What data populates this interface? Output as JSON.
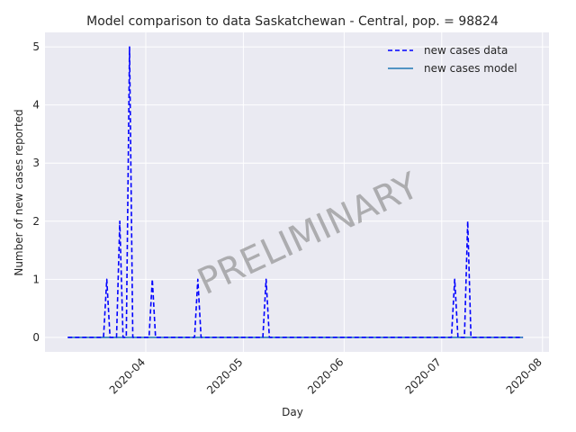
{
  "chart_data": {
    "type": "line",
    "title": "Model comparison to data Saskatchewan - Central, pop. = 98824",
    "xlabel": "Day",
    "ylabel": "Number of new cases reported",
    "watermark": "PRELIMINARY",
    "x_range": [
      "2020-03-08",
      "2020-07-26"
    ],
    "xlim": [
      "2020-03-01",
      "2020-08-03"
    ],
    "ylim": [
      -0.25,
      5.25
    ],
    "y_ticks": [
      0,
      1,
      2,
      3,
      4,
      5
    ],
    "x_ticks": [
      "2020-04-01",
      "2020-05-01",
      "2020-06-01",
      "2020-07-01",
      "2020-08-01"
    ],
    "x_tick_labels": [
      "2020-04",
      "2020-05",
      "2020-06",
      "2020-07",
      "2020-08"
    ],
    "grid": true,
    "legend_position": "top-right",
    "series": [
      {
        "name": "new cases data",
        "style": "dashed",
        "color": "#0000ff",
        "points": [
          {
            "x": "2020-03-20",
            "y": 1
          },
          {
            "x": "2020-03-24",
            "y": 2
          },
          {
            "x": "2020-03-27",
            "y": 5
          },
          {
            "x": "2020-04-03",
            "y": 1
          },
          {
            "x": "2020-04-17",
            "y": 1
          },
          {
            "x": "2020-05-08",
            "y": 1
          },
          {
            "x": "2020-07-05",
            "y": 1
          },
          {
            "x": "2020-07-09",
            "y": 2
          }
        ]
      },
      {
        "name": "new cases model",
        "style": "solid",
        "color": "#1f77b4",
        "constant_value": 0
      }
    ]
  }
}
